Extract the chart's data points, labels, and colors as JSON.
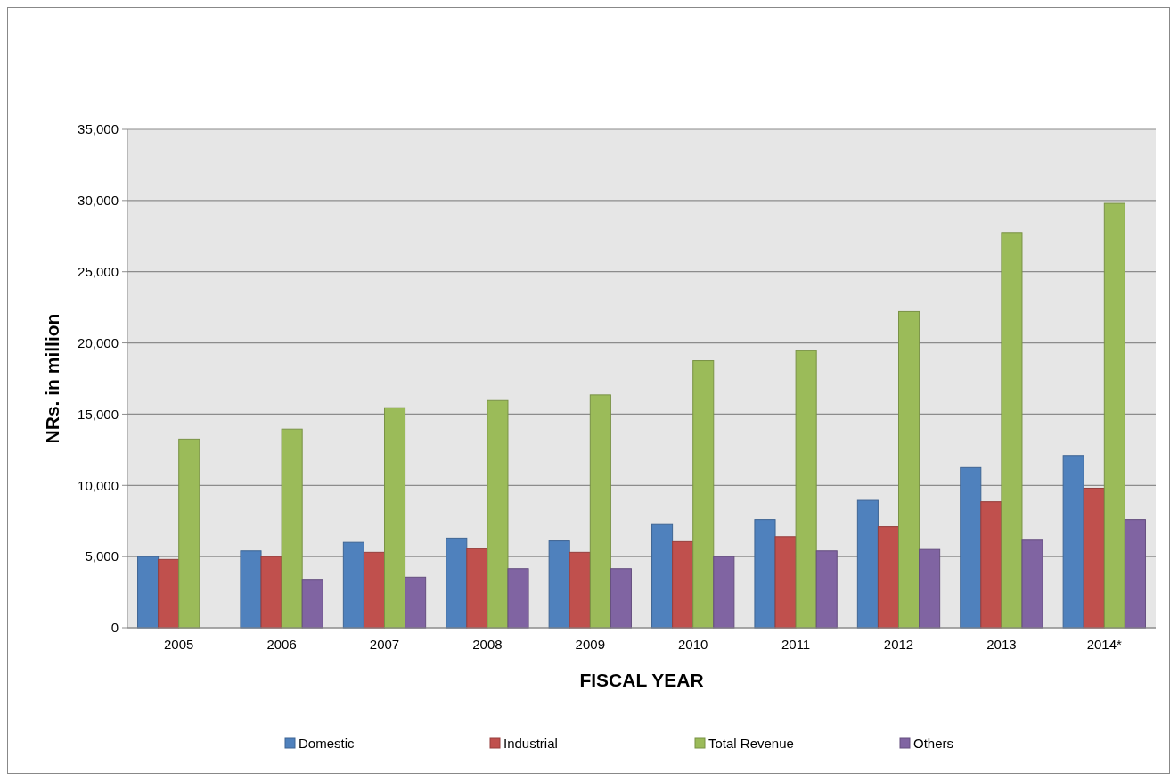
{
  "chart_data": {
    "type": "bar",
    "xlabel": "FISCAL YEAR",
    "ylabel": "NRs. in million",
    "categories": [
      "2005",
      "2006",
      "2007",
      "2008",
      "2009",
      "2010",
      "2011",
      "2012",
      "2013",
      "2014*"
    ],
    "series": [
      {
        "name": "Domestic",
        "color": "#4f81bd",
        "values": [
          5000,
          5400,
          6000,
          6300,
          6100,
          7250,
          7600,
          8950,
          11250,
          12100
        ]
      },
      {
        "name": "Industrial",
        "color": "#c0504d",
        "values": [
          4800,
          5000,
          5300,
          5550,
          5300,
          6050,
          6400,
          7100,
          8850,
          9800
        ]
      },
      {
        "name": "Total Revenue",
        "color": "#9bbb59",
        "values": [
          13250,
          13950,
          15450,
          15950,
          16350,
          18750,
          19450,
          22200,
          27750,
          29800
        ]
      },
      {
        "name": "Others",
        "color": "#8064a2",
        "values": [
          null,
          3400,
          3550,
          4150,
          4150,
          5000,
          5400,
          5500,
          6150,
          7600
        ]
      }
    ],
    "ylim": [
      0,
      35000
    ],
    "yticks": [
      {
        "value": 0,
        "label": "0"
      },
      {
        "value": 5000,
        "label": "5,000"
      },
      {
        "value": 10000,
        "label": "10,000"
      },
      {
        "value": 15000,
        "label": "15,000"
      },
      {
        "value": 20000,
        "label": "20,000"
      },
      {
        "value": 25000,
        "label": "25,000"
      },
      {
        "value": 30000,
        "label": "30,000"
      },
      {
        "value": 35000,
        "label": "35,000"
      }
    ],
    "grid": "y",
    "legend": "bottom"
  }
}
